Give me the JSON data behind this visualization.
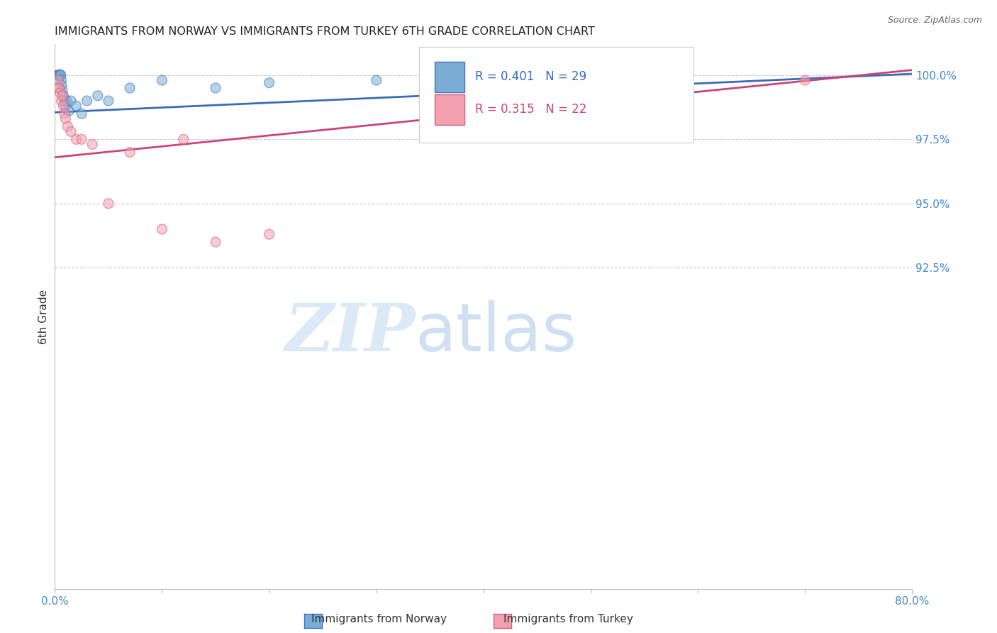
{
  "title": "IMMIGRANTS FROM NORWAY VS IMMIGRANTS FROM TURKEY 6TH GRADE CORRELATION CHART",
  "source": "Source: ZipAtlas.com",
  "ylabel": "6th Grade",
  "ylabel_right_ticks": [
    100.0,
    97.5,
    95.0,
    92.5
  ],
  "xlim": [
    0.0,
    80.0
  ],
  "ylim": [
    80.0,
    101.2
  ],
  "watermark_zip": "ZIP",
  "watermark_atlas": "atlas",
  "norway_R": 0.401,
  "norway_N": 29,
  "turkey_R": 0.315,
  "turkey_N": 22,
  "norway_color": "#7aadd4",
  "norway_edge": "#4472c4",
  "turkey_color": "#f4a0b0",
  "turkey_edge": "#d4607a",
  "trendline_norway_color": "#3a6bb5",
  "trendline_turkey_color": "#cc4477",
  "norway_scatter_x": [
    0.15,
    0.2,
    0.25,
    0.3,
    0.35,
    0.4,
    0.45,
    0.5,
    0.55,
    0.6,
    0.65,
    0.7,
    0.8,
    0.9,
    1.0,
    1.1,
    1.3,
    1.5,
    2.0,
    2.5,
    3.0,
    4.0,
    5.0,
    7.0,
    10.0,
    15.0,
    20.0,
    30.0,
    55.0
  ],
  "norway_scatter_y": [
    100.0,
    100.0,
    100.0,
    100.0,
    100.0,
    100.0,
    100.0,
    100.0,
    100.0,
    99.8,
    99.6,
    99.4,
    99.2,
    99.0,
    98.8,
    99.0,
    98.6,
    99.0,
    98.8,
    98.5,
    99.0,
    99.2,
    99.0,
    99.5,
    99.8,
    99.5,
    99.7,
    99.8,
    100.0
  ],
  "norway_scatter_s": [
    80,
    80,
    80,
    100,
    100,
    100,
    100,
    120,
    100,
    100,
    100,
    100,
    100,
    100,
    100,
    100,
    100,
    100,
    100,
    100,
    100,
    100,
    100,
    100,
    100,
    100,
    100,
    100,
    100
  ],
  "turkey_scatter_x": [
    0.15,
    0.3,
    0.4,
    0.5,
    0.6,
    0.7,
    0.8,
    0.9,
    1.0,
    1.2,
    1.5,
    2.0,
    2.5,
    3.5,
    5.0,
    7.0,
    10.0,
    12.0,
    15.0,
    20.0,
    55.0,
    70.0
  ],
  "turkey_scatter_y": [
    99.5,
    99.8,
    99.5,
    99.3,
    99.0,
    99.2,
    98.8,
    98.5,
    98.3,
    98.0,
    97.8,
    97.5,
    97.5,
    97.3,
    95.0,
    97.0,
    94.0,
    97.5,
    93.5,
    93.8,
    100.0,
    99.8
  ],
  "turkey_scatter_s": [
    100,
    100,
    100,
    100,
    100,
    100,
    100,
    100,
    100,
    100,
    100,
    100,
    100,
    100,
    100,
    100,
    100,
    100,
    100,
    100,
    100,
    100
  ],
  "trendline_norway_x0": 0.0,
  "trendline_norway_y0": 98.55,
  "trendline_norway_x1": 80.0,
  "trendline_norway_y1": 100.05,
  "trendline_turkey_x0": 0.0,
  "trendline_turkey_y0": 96.8,
  "trendline_turkey_x1": 80.0,
  "trendline_turkey_y1": 100.2,
  "legend_norway_text": "R = 0.401   N = 29",
  "legend_turkey_text": "R = 0.315   N = 22",
  "bottom_legend_norway": "Immigrants from Norway",
  "bottom_legend_turkey": "Immigrants from Turkey",
  "grid_color": "#cccccc",
  "grid_style": "--",
  "xtick_positions": [
    0,
    10,
    20,
    30,
    40,
    50,
    60,
    70,
    80
  ],
  "xtick_labels": [
    "0.0%",
    "",
    "",
    "",
    "",
    "",
    "",
    "",
    "80.0%"
  ],
  "tick_color": "#4488cc"
}
